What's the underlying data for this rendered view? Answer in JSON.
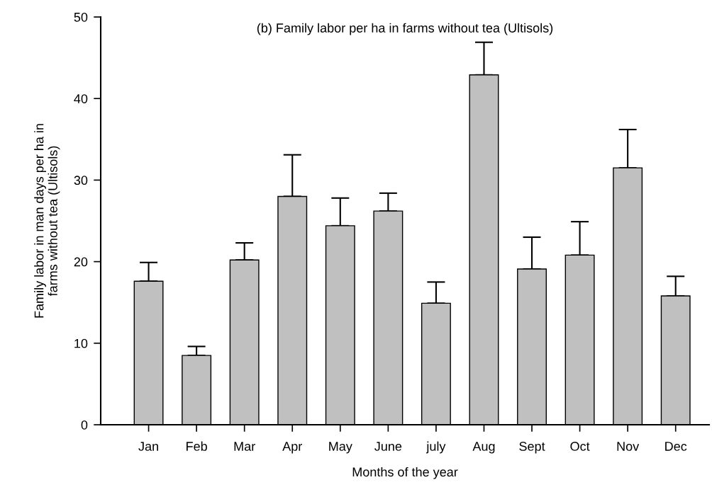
{
  "chart_data": {
    "type": "bar",
    "title": "(b) Family labor per ha in farms without tea (Ultisols)",
    "xlabel": "Months of the year",
    "ylabel": "Family labor in man days per ha in\nfarms without tea (Ultisols)",
    "categories": [
      "Jan",
      "Feb",
      "Mar",
      "Apr",
      "May",
      "June",
      "july",
      "Aug",
      "Sept",
      "Oct",
      "Nov",
      "Dec"
    ],
    "values": [
      17.6,
      8.5,
      20.2,
      28.0,
      24.4,
      26.2,
      14.9,
      42.9,
      19.1,
      20.8,
      31.5,
      15.8
    ],
    "errors": [
      [
        17.6,
        19.9
      ],
      [
        8.5,
        9.6
      ],
      [
        20.2,
        22.3
      ],
      [
        28.0,
        33.1
      ],
      [
        24.4,
        27.8
      ],
      [
        26.2,
        28.4
      ],
      [
        14.9,
        17.5
      ],
      [
        42.9,
        46.9
      ],
      [
        19.1,
        23.0
      ],
      [
        20.8,
        24.9
      ],
      [
        31.5,
        36.2
      ],
      [
        15.8,
        18.2
      ]
    ],
    "color": "#c0c0c0",
    "ylim": [
      0,
      50
    ],
    "yticks": [
      0,
      10,
      20,
      30,
      40,
      50
    ],
    "grid": false,
    "legend": false
  }
}
